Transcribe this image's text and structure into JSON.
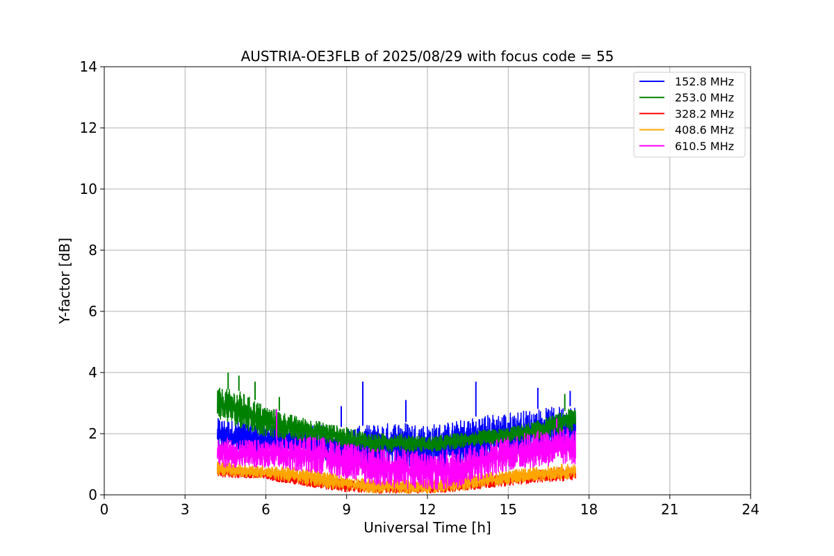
{
  "chart_data": {
    "type": "line",
    "title": "AUSTRIA-OE3FLB of 2025/08/29 with focus code = 55",
    "xlabel": "Universal Time [h]",
    "ylabel": "Y-factor [dB]",
    "xlim": [
      0,
      24
    ],
    "ylim": [
      0,
      14
    ],
    "xticks": [
      "0",
      "3",
      "6",
      "9",
      "12",
      "15",
      "18",
      "21",
      "24"
    ],
    "yticks": [
      "0",
      "2",
      "4",
      "6",
      "8",
      "10",
      "12",
      "14"
    ],
    "grid": true,
    "legend_position": "top-right",
    "series": [
      {
        "name": "152.8 MHz",
        "color": "#0000ff",
        "x": [
          4.2,
          5,
          6,
          7,
          8,
          9,
          10,
          11,
          12,
          13,
          14,
          15,
          16,
          17,
          17.5
        ],
        "low": [
          1.5,
          1.4,
          1.3,
          1.2,
          1.1,
          0.9,
          0.8,
          0.8,
          0.8,
          0.9,
          1.0,
          1.2,
          1.3,
          1.4,
          1.5
        ],
        "high": [
          2.5,
          2.4,
          2.3,
          2.3,
          2.3,
          2.2,
          2.3,
          2.4,
          2.3,
          2.4,
          2.6,
          2.7,
          2.8,
          2.9,
          2.9
        ],
        "spikes": [
          [
            9.6,
            3.7
          ],
          [
            13.8,
            3.7
          ],
          [
            16.1,
            3.5
          ],
          [
            17.3,
            3.4
          ],
          [
            11.2,
            3.1
          ],
          [
            8.8,
            2.9
          ]
        ]
      },
      {
        "name": "253.0 MHz",
        "color": "#008000",
        "x": [
          4.2,
          5,
          6,
          7,
          8,
          9,
          10,
          11,
          12,
          13,
          14,
          15,
          16,
          17,
          17.5
        ],
        "low": [
          2.5,
          2.2,
          1.9,
          1.8,
          1.7,
          1.5,
          1.4,
          1.4,
          1.4,
          1.5,
          1.6,
          1.7,
          1.8,
          2.0,
          2.1
        ],
        "high": [
          3.5,
          3.4,
          2.9,
          2.6,
          2.4,
          2.2,
          2.0,
          2.0,
          1.9,
          2.0,
          2.1,
          2.2,
          2.4,
          2.7,
          2.9
        ],
        "spikes": [
          [
            4.6,
            4.0
          ],
          [
            5.0,
            3.9
          ],
          [
            5.6,
            3.7
          ],
          [
            6.5,
            3.2
          ],
          [
            17.1,
            3.3
          ]
        ]
      },
      {
        "name": "328.2 MHz",
        "color": "#ff0000",
        "x": [
          4.2,
          5,
          6,
          7,
          8,
          9,
          10,
          11,
          12,
          13,
          14,
          15,
          16,
          17,
          17.5
        ],
        "low": [
          0.6,
          0.55,
          0.5,
          0.35,
          0.2,
          0.1,
          0.05,
          0.05,
          0.05,
          0.1,
          0.2,
          0.3,
          0.4,
          0.45,
          0.5
        ],
        "high": [
          1.0,
          0.9,
          0.8,
          0.7,
          0.6,
          0.5,
          0.4,
          0.4,
          0.4,
          0.5,
          0.6,
          0.7,
          0.8,
          0.9,
          0.9
        ],
        "spikes": []
      },
      {
        "name": "408.6 MHz",
        "color": "#ffa500",
        "x": [
          4.2,
          5,
          6,
          7,
          8,
          9,
          10,
          11,
          12,
          13,
          14,
          15,
          16,
          17,
          17.5
        ],
        "low": [
          0.65,
          0.6,
          0.55,
          0.4,
          0.25,
          0.15,
          0.05,
          0.05,
          0.05,
          0.1,
          0.25,
          0.35,
          0.45,
          0.5,
          0.55
        ],
        "high": [
          1.1,
          1.0,
          0.95,
          0.9,
          0.8,
          0.6,
          0.5,
          0.5,
          0.5,
          0.6,
          0.7,
          0.8,
          0.9,
          1.0,
          1.0
        ],
        "spikes": []
      },
      {
        "name": "610.5 MHz",
        "color": "#ff00ff",
        "x": [
          4.2,
          5,
          6,
          7,
          8,
          9,
          10,
          11,
          12,
          13,
          14,
          15,
          16,
          17,
          17.5
        ],
        "low": [
          0.9,
          0.9,
          0.85,
          0.8,
          0.7,
          0.5,
          0.3,
          0.2,
          0.15,
          0.2,
          0.5,
          0.8,
          0.9,
          0.95,
          1.0
        ],
        "high": [
          1.9,
          1.8,
          1.8,
          1.9,
          1.9,
          1.7,
          1.5,
          1.5,
          1.4,
          1.5,
          1.7,
          1.9,
          2.1,
          2.2,
          2.2
        ],
        "spikes": [
          [
            6.4,
            2.8
          ],
          [
            16.8,
            2.5
          ]
        ]
      }
    ]
  }
}
